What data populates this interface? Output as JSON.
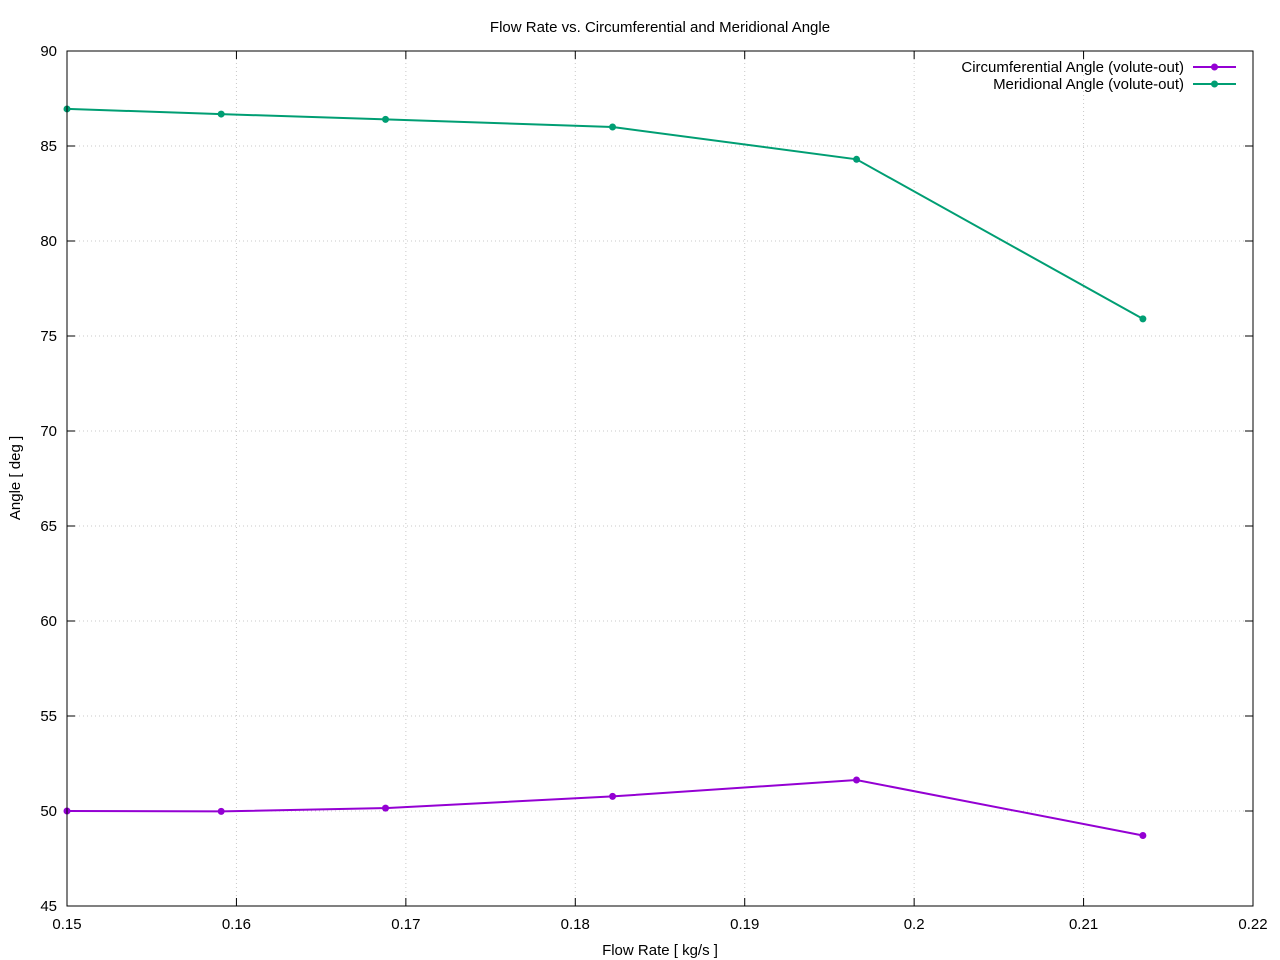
{
  "chart_data": {
    "type": "line",
    "title": "Flow Rate vs. Circumferential and Meridional Angle",
    "xlabel": "Flow Rate [ kg/s ]",
    "ylabel": "Angle [ deg ]",
    "xlim": [
      0.15,
      0.22
    ],
    "ylim": [
      45,
      90
    ],
    "x_ticks": [
      "0.15",
      "0.16",
      "0.17",
      "0.18",
      "0.19",
      "0.2",
      "0.21",
      "0.22"
    ],
    "y_ticks": [
      "45",
      "50",
      "55",
      "60",
      "65",
      "70",
      "75",
      "80",
      "85",
      "90"
    ],
    "grid": true,
    "legend_position": "top-right",
    "series": [
      {
        "name": "Circumferential Angle (volute-out)",
        "color": "#9400d3",
        "x": [
          0.15,
          0.1591,
          0.1688,
          0.1822,
          0.1966,
          0.2135
        ],
        "y": [
          50.0,
          49.98,
          50.15,
          50.77,
          51.63,
          48.71
        ]
      },
      {
        "name": "Meridional Angle (volute-out)",
        "color": "#009e73",
        "x": [
          0.15,
          0.1591,
          0.1688,
          0.1822,
          0.1966,
          0.2135
        ],
        "y": [
          86.95,
          86.68,
          86.4,
          86.0,
          84.3,
          75.9
        ]
      }
    ]
  }
}
